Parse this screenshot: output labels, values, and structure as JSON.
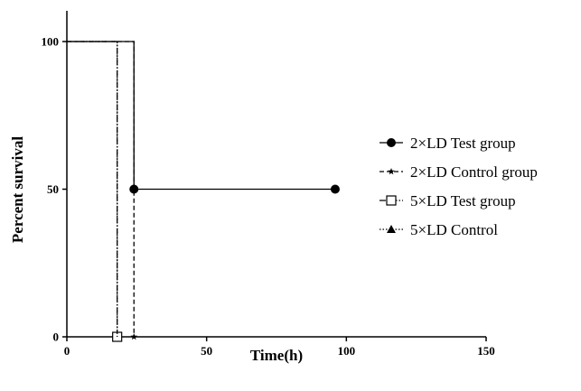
{
  "chart_data": {
    "type": "line",
    "subtype": "kaplan-meier survival (step)",
    "xlabel": "Time(h)",
    "ylabel": "Percent survival",
    "xlim": [
      0,
      150
    ],
    "ylim": [
      0,
      110
    ],
    "xticks": [
      0,
      50,
      100,
      150
    ],
    "yticks": [
      0,
      50,
      100
    ],
    "xtick_labels": [
      "0",
      "50",
      "100",
      "150"
    ],
    "ytick_labels": [
      "0",
      "50",
      "100"
    ],
    "grid": false,
    "legend_position": "right",
    "series": [
      {
        "name": "2×LD Test group",
        "marker": "filled-circle",
        "line_style": "solid",
        "points": [
          [
            0,
            100
          ],
          [
            24,
            100
          ],
          [
            24,
            50
          ],
          [
            96,
            50
          ]
        ],
        "marked_points": [
          [
            24,
            50
          ],
          [
            96,
            50
          ]
        ]
      },
      {
        "name": "2×LD Control group",
        "marker": "star",
        "line_style": "dashed",
        "points": [
          [
            0,
            100
          ],
          [
            24,
            100
          ],
          [
            24,
            0
          ]
        ],
        "marked_points": [
          [
            24,
            0
          ]
        ]
      },
      {
        "name": "5×LD Test group",
        "marker": "open-square",
        "line_style": "dash-dot",
        "points": [
          [
            0,
            100
          ],
          [
            18,
            100
          ],
          [
            18,
            0
          ]
        ],
        "marked_points": [
          [
            18,
            0
          ]
        ]
      },
      {
        "name": "5×LD Control",
        "marker": "filled-triangle",
        "line_style": "dotted",
        "points": [
          [
            0,
            100
          ],
          [
            18,
            100
          ],
          [
            18,
            0
          ]
        ],
        "marked_points": []
      }
    ]
  }
}
